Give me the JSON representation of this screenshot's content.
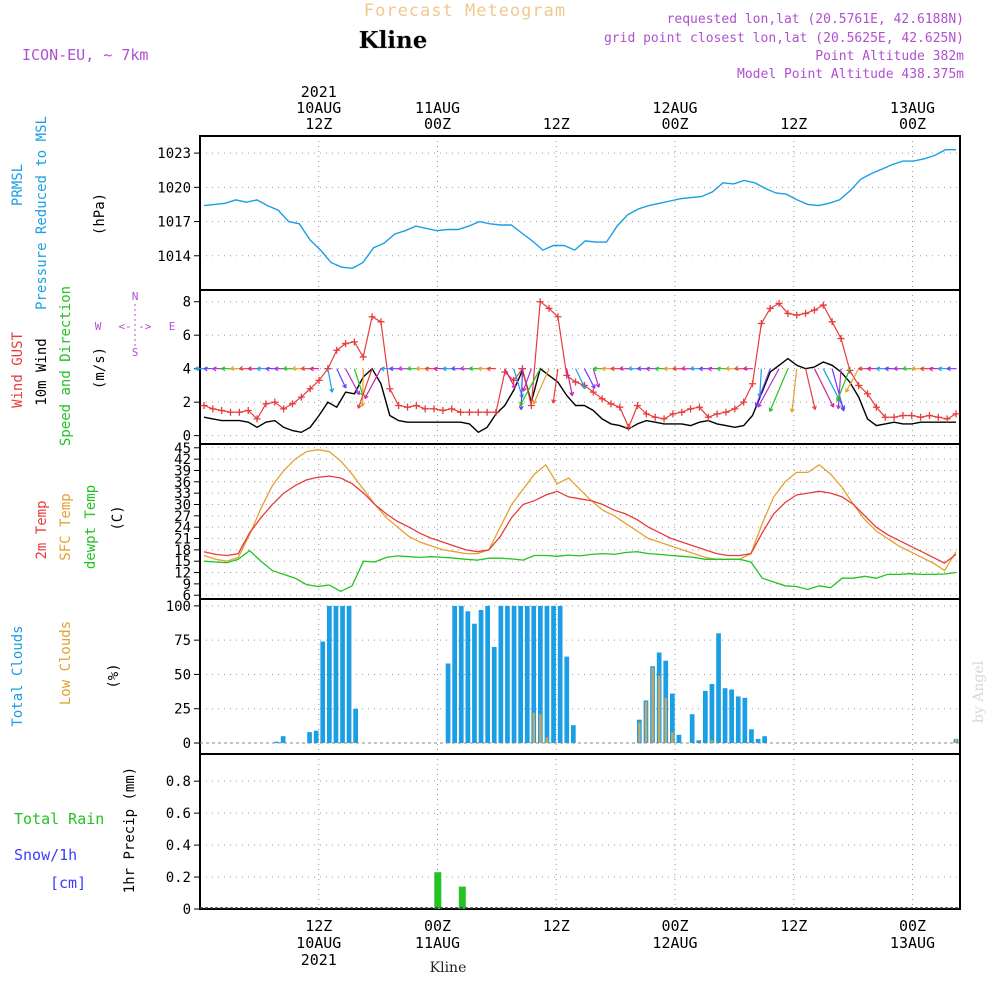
{
  "header": {
    "title": "Forecast Meteogram",
    "location": "Kline",
    "model": "ICON-EU, ~ 7km",
    "requested": "requested lon,lat (20.5761E, 42.6188N)",
    "grid_point": "grid point closest lon,lat (20.5625E, 42.625N)",
    "point_altitude": "Point Altitude 382m",
    "model_altitude": "Model Point Altitude 438.375m",
    "watermark": "by Angel",
    "footer_location": "Kline"
  },
  "colors": {
    "pressure": "#1a9ee6",
    "gust": "#e83c3c",
    "wind": "#000000",
    "temp": "#e83c3c",
    "sfc_temp": "#e6a030",
    "dewpt": "#22c322",
    "total_clouds": "#1a9ee6",
    "low_clouds": "#c8a860",
    "rain": "#22c322",
    "snow": "#3c3cff",
    "header_orange": "#f0c890",
    "header_purple": "#b050d0",
    "grid": "#999999"
  },
  "chart_data": [
    {
      "type": "line",
      "title": "PRMSL Pressure Reduced to MSL",
      "ylabel": "(hPa)",
      "label_lines": [
        "PRMSL",
        "Pressure Reduced to MSL"
      ],
      "unit_label": "(hPa)",
      "ylim": [
        1011.0,
        1024.5
      ],
      "yticks": [
        1014,
        1017,
        1020,
        1023
      ],
      "ytick_labels": [
        "1014",
        "1017",
        "1020",
        "1023"
      ],
      "series": [
        {
          "name": "PRMSL",
          "values": [
            1018.4,
            1018.5,
            1018.6,
            1018.9,
            1018.7,
            1018.9,
            1018.4,
            1018.0,
            1017.0,
            1016.8,
            1015.4,
            1014.5,
            1013.4,
            1013.0,
            1012.9,
            1013.4,
            1014.7,
            1015.1,
            1015.9,
            1016.2,
            1016.6,
            1016.4,
            1016.2,
            1016.3,
            1016.3,
            1016.6,
            1017.0,
            1016.8,
            1016.7,
            1016.7,
            1016.0,
            1015.3,
            1014.5,
            1014.9,
            1014.9,
            1014.5,
            1015.3,
            1015.2,
            1015.2,
            1016.6,
            1017.6,
            1018.1,
            1018.4,
            1018.6,
            1018.8,
            1019.0,
            1019.1,
            1019.2,
            1019.6,
            1020.4,
            1020.3,
            1020.6,
            1020.4,
            1019.9,
            1019.5,
            1019.4,
            1018.9,
            1018.5,
            1018.4,
            1018.6,
            1018.9,
            1019.7,
            1020.7,
            1021.2,
            1021.6,
            1022.0,
            1022.3,
            1022.3,
            1022.5,
            1022.8,
            1023.3,
            1023.3
          ]
        }
      ]
    },
    {
      "type": "line",
      "title": "Wind GUST, 10m Wind Speed and Direction",
      "ylabel": "(m/s)",
      "label_lines": [
        "Wind GUST",
        "10m Wind",
        "Speed and Direction"
      ],
      "unit_label": "(m/s)",
      "compass": {
        "n": "N",
        "s": "S",
        "e": "E",
        "w": "W",
        "arrow": "<- ->"
      },
      "ylim": [
        -0.5,
        8.7
      ],
      "yticks": [
        0,
        2,
        4,
        6,
        8
      ],
      "ytick_labels": [
        "0",
        "2",
        "4",
        "6",
        "8"
      ],
      "series": [
        {
          "name": "Wind GUST",
          "values": [
            1.8,
            1.6,
            1.5,
            1.4,
            1.4,
            1.5,
            1.0,
            1.9,
            2.0,
            1.6,
            1.9,
            2.3,
            2.8,
            3.3,
            4.0,
            5.1,
            5.5,
            5.6,
            4.7,
            7.1,
            6.8,
            2.8,
            1.8,
            1.7,
            1.8,
            1.6,
            1.6,
            1.5,
            1.6,
            1.4,
            1.4,
            1.4,
            1.4,
            1.4,
            3.8,
            3.3,
            4.0,
            1.8,
            8.0,
            7.6,
            7.1,
            3.6,
            3.2,
            3.0,
            2.6,
            2.2,
            1.9,
            1.7,
            0.5,
            1.8,
            1.3,
            1.1,
            1.0,
            1.3,
            1.4,
            1.6,
            1.7,
            1.1,
            1.3,
            1.4,
            1.6,
            2.0,
            3.1,
            6.7,
            7.6,
            7.9,
            7.3,
            7.2,
            7.3,
            7.5,
            7.8,
            6.8,
            5.8,
            3.9,
            3.0,
            2.5,
            1.7,
            1.1,
            1.1,
            1.2,
            1.2,
            1.1,
            1.2,
            1.1,
            1.0,
            1.3
          ]
        },
        {
          "name": "10m Wind",
          "values": [
            1.1,
            1.0,
            0.9,
            0.9,
            0.9,
            0.8,
            0.5,
            0.8,
            0.9,
            0.5,
            0.3,
            0.2,
            0.5,
            1.2,
            2.0,
            1.7,
            2.6,
            2.5,
            3.5,
            4.0,
            3.1,
            1.2,
            0.9,
            0.8,
            0.8,
            0.8,
            0.8,
            0.8,
            0.8,
            0.8,
            0.7,
            0.2,
            0.5,
            1.3,
            1.8,
            2.7,
            3.9,
            2.0,
            4.0,
            3.6,
            3.2,
            2.4,
            1.8,
            1.8,
            1.5,
            1.0,
            0.7,
            0.6,
            0.4,
            0.7,
            0.9,
            0.8,
            0.7,
            0.7,
            0.7,
            0.6,
            0.8,
            0.9,
            0.7,
            0.6,
            0.5,
            0.6,
            1.2,
            2.5,
            3.8,
            4.2,
            4.6,
            4.2,
            4.0,
            4.1,
            4.4,
            4.2,
            3.8,
            3.2,
            2.3,
            1.0,
            0.6,
            0.7,
            0.8,
            0.7,
            0.7,
            0.8,
            0.8,
            0.8,
            0.8,
            0.8
          ]
        }
      ]
    },
    {
      "type": "line",
      "title": "2m Temp, SFC Temp, dewpt Temp",
      "ylabel": "(C)",
      "label_lines": [
        "2m Temp",
        "SFC Temp",
        "dewpt Temp"
      ],
      "unit_label": "(C)",
      "ylim": [
        5,
        46
      ],
      "yticks": [
        6,
        9,
        12,
        15,
        18,
        21,
        24,
        27,
        30,
        33,
        36,
        39,
        42,
        45
      ],
      "ytick_labels": [
        "6",
        "9",
        "12",
        "15",
        "18",
        "21",
        "24",
        "27",
        "30",
        "33",
        "36",
        "39",
        "42",
        "45"
      ],
      "series": [
        {
          "name": "2m Temp",
          "values": [
            17.5,
            16.8,
            16.5,
            17.0,
            22.5,
            26.5,
            30.0,
            33.0,
            35.0,
            36.5,
            37.2,
            37.5,
            37.0,
            35.5,
            33.0,
            30.0,
            27.5,
            25.5,
            24.0,
            22.3,
            21.0,
            20.0,
            19.0,
            18.0,
            17.5,
            18.0,
            21.5,
            26.5,
            30.0,
            31.0,
            32.5,
            33.5,
            32.0,
            31.5,
            31.0,
            30.0,
            28.5,
            27.5,
            26.0,
            24.0,
            22.5,
            21.0,
            20.0,
            19.0,
            18.0,
            17.0,
            16.5,
            16.5,
            17.0,
            22.5,
            27.5,
            30.5,
            32.5,
            33.0,
            33.5,
            33.0,
            32.0,
            30.0,
            27.0,
            24.0,
            22.0,
            20.5,
            19.0,
            17.5,
            16.0,
            14.5,
            16.8
          ]
        },
        {
          "name": "SFC Temp",
          "values": [
            16.5,
            15.5,
            15.0,
            16.0,
            22.0,
            29.0,
            35.0,
            39.0,
            42.0,
            44.0,
            44.5,
            44.0,
            41.5,
            38.0,
            34.0,
            30.0,
            26.5,
            24.0,
            21.5,
            20.0,
            19.0,
            18.0,
            17.5,
            17.0,
            17.0,
            18.0,
            24.0,
            30.0,
            34.0,
            38.0,
            40.5,
            35.5,
            37.0,
            34.0,
            31.0,
            28.5,
            27.0,
            25.0,
            23.0,
            21.0,
            20.0,
            19.0,
            18.0,
            17.0,
            16.0,
            15.5,
            15.5,
            15.5,
            17.0,
            25.0,
            32.0,
            36.0,
            38.5,
            38.5,
            40.5,
            38.0,
            34.5,
            30.0,
            26.0,
            23.0,
            21.0,
            19.0,
            17.5,
            16.0,
            14.5,
            12.5,
            17.5
          ]
        },
        {
          "name": "dewpt Temp",
          "values": [
            15.0,
            14.8,
            14.6,
            15.5,
            17.8,
            15.0,
            12.5,
            11.5,
            10.5,
            8.8,
            8.3,
            8.7,
            7.0,
            8.5,
            15.0,
            14.8,
            16.0,
            16.4,
            16.2,
            16.0,
            16.2,
            16.0,
            15.8,
            15.5,
            15.3,
            15.8,
            15.8,
            15.6,
            15.3,
            16.5,
            16.5,
            16.3,
            16.6,
            16.4,
            16.8,
            17.0,
            16.8,
            17.3,
            17.5,
            17.0,
            16.8,
            16.5,
            16.3,
            16.0,
            15.5,
            15.5,
            15.5,
            15.5,
            14.8,
            10.5,
            9.5,
            8.5,
            8.3,
            7.5,
            8.5,
            8.0,
            10.5,
            10.5,
            11.0,
            10.5,
            11.5,
            11.5,
            11.7,
            11.5,
            11.5,
            11.6,
            12.0
          ]
        }
      ]
    },
    {
      "type": "bar",
      "title": "Total Clouds, Low Clouds",
      "ylabel": "(%)",
      "label_lines": [
        "Total Clouds",
        "Low Clouds"
      ],
      "unit_label": "(%)",
      "ylim": [
        -8,
        105
      ],
      "yticks": [
        0,
        25,
        50,
        75,
        100
      ],
      "ytick_labels": [
        "0",
        "25",
        "50",
        "75",
        "100"
      ],
      "series": [
        {
          "name": "Total Clouds",
          "values": [
            0,
            0,
            0,
            0,
            0,
            0,
            0,
            0,
            0,
            0,
            0,
            1,
            5,
            0,
            0,
            0,
            8,
            9,
            74,
            100,
            100,
            100,
            100,
            25,
            0,
            0,
            0,
            0,
            0,
            0,
            0,
            0,
            0,
            0,
            0,
            0,
            0,
            58,
            100,
            100,
            96,
            87,
            97,
            100,
            70,
            100,
            100,
            100,
            100,
            100,
            100,
            100,
            100,
            100,
            100,
            63,
            13,
            0,
            0,
            0,
            0,
            0,
            0,
            0,
            0,
            0,
            17,
            31,
            56,
            66,
            60,
            36,
            6,
            0,
            21,
            2,
            38,
            43,
            80,
            40,
            39,
            34,
            33,
            10,
            3,
            5,
            0,
            0,
            0,
            0,
            0,
            0,
            0,
            0,
            0,
            0,
            0,
            0,
            0,
            0,
            0,
            0,
            0,
            0,
            0,
            0,
            0,
            0,
            0,
            0,
            0,
            0,
            0,
            0,
            3
          ]
        },
        {
          "name": "Low Clouds",
          "values": [
            0,
            0,
            0,
            0,
            0,
            0,
            0,
            0,
            0,
            0,
            0,
            0,
            0,
            0,
            0,
            0,
            0,
            0,
            0,
            0,
            0,
            0,
            0,
            0,
            0,
            0,
            0,
            0,
            0,
            0,
            0,
            0,
            0,
            0,
            0,
            0,
            0,
            0,
            0,
            0,
            0,
            0,
            0,
            0,
            0,
            0,
            0,
            0,
            0,
            0,
            22,
            21,
            4,
            0,
            0,
            0,
            0,
            0,
            0,
            0,
            0,
            0,
            0,
            0,
            0,
            0,
            15,
            30,
            55,
            49,
            33,
            8,
            0,
            0,
            0,
            0,
            0,
            2,
            0,
            0,
            0,
            0,
            0,
            0,
            0,
            0,
            0,
            0,
            0,
            0,
            0,
            0,
            0,
            0,
            0,
            0,
            0,
            0,
            0,
            0,
            0,
            0,
            0,
            0,
            0,
            0,
            0,
            0,
            0,
            0,
            0,
            0,
            0,
            0,
            3
          ]
        }
      ]
    },
    {
      "type": "bar",
      "title": "1hr Precip",
      "ylabel": "1hr Precip (mm)",
      "label_lines": [
        "Total Rain",
        "Snow/1h",
        "[cm]"
      ],
      "unit_label": "1hr Precip (mm)",
      "ylim": [
        0,
        0.97
      ],
      "yticks": [
        0,
        0.2,
        0.4,
        0.6,
        0.8
      ],
      "ytick_labels": [
        "0",
        "0.2",
        "0.4",
        "0.6",
        "0.8"
      ],
      "series": [
        {
          "name": "Total Rain",
          "x": [
            23.9,
            26.4
          ],
          "values": [
            0.23,
            0.14
          ]
        }
      ]
    }
  ],
  "time_axis": {
    "top_labels": [
      {
        "lines": [
          "2021",
          "10AUG",
          "12Z"
        ]
      },
      {
        "lines": [
          "11AUG",
          "00Z"
        ]
      },
      {
        "lines": [
          "12Z"
        ]
      },
      {
        "lines": [
          "12AUG",
          "00Z"
        ]
      },
      {
        "lines": [
          "12Z"
        ]
      },
      {
        "lines": [
          "13AUG",
          "00Z"
        ]
      }
    ],
    "bottom_labels": [
      {
        "lines": [
          "12Z",
          "10AUG",
          "2021"
        ]
      },
      {
        "lines": [
          "00Z",
          "11AUG"
        ]
      },
      {
        "lines": [
          "12Z"
        ]
      },
      {
        "lines": [
          "00Z",
          "12AUG"
        ]
      },
      {
        "lines": [
          "12Z"
        ]
      },
      {
        "lines": [
          "00Z",
          "13AUG"
        ]
      }
    ],
    "tick_hours": [
      12,
      24,
      36,
      48,
      60,
      72
    ],
    "range_hours": [
      0,
      76.8
    ]
  }
}
